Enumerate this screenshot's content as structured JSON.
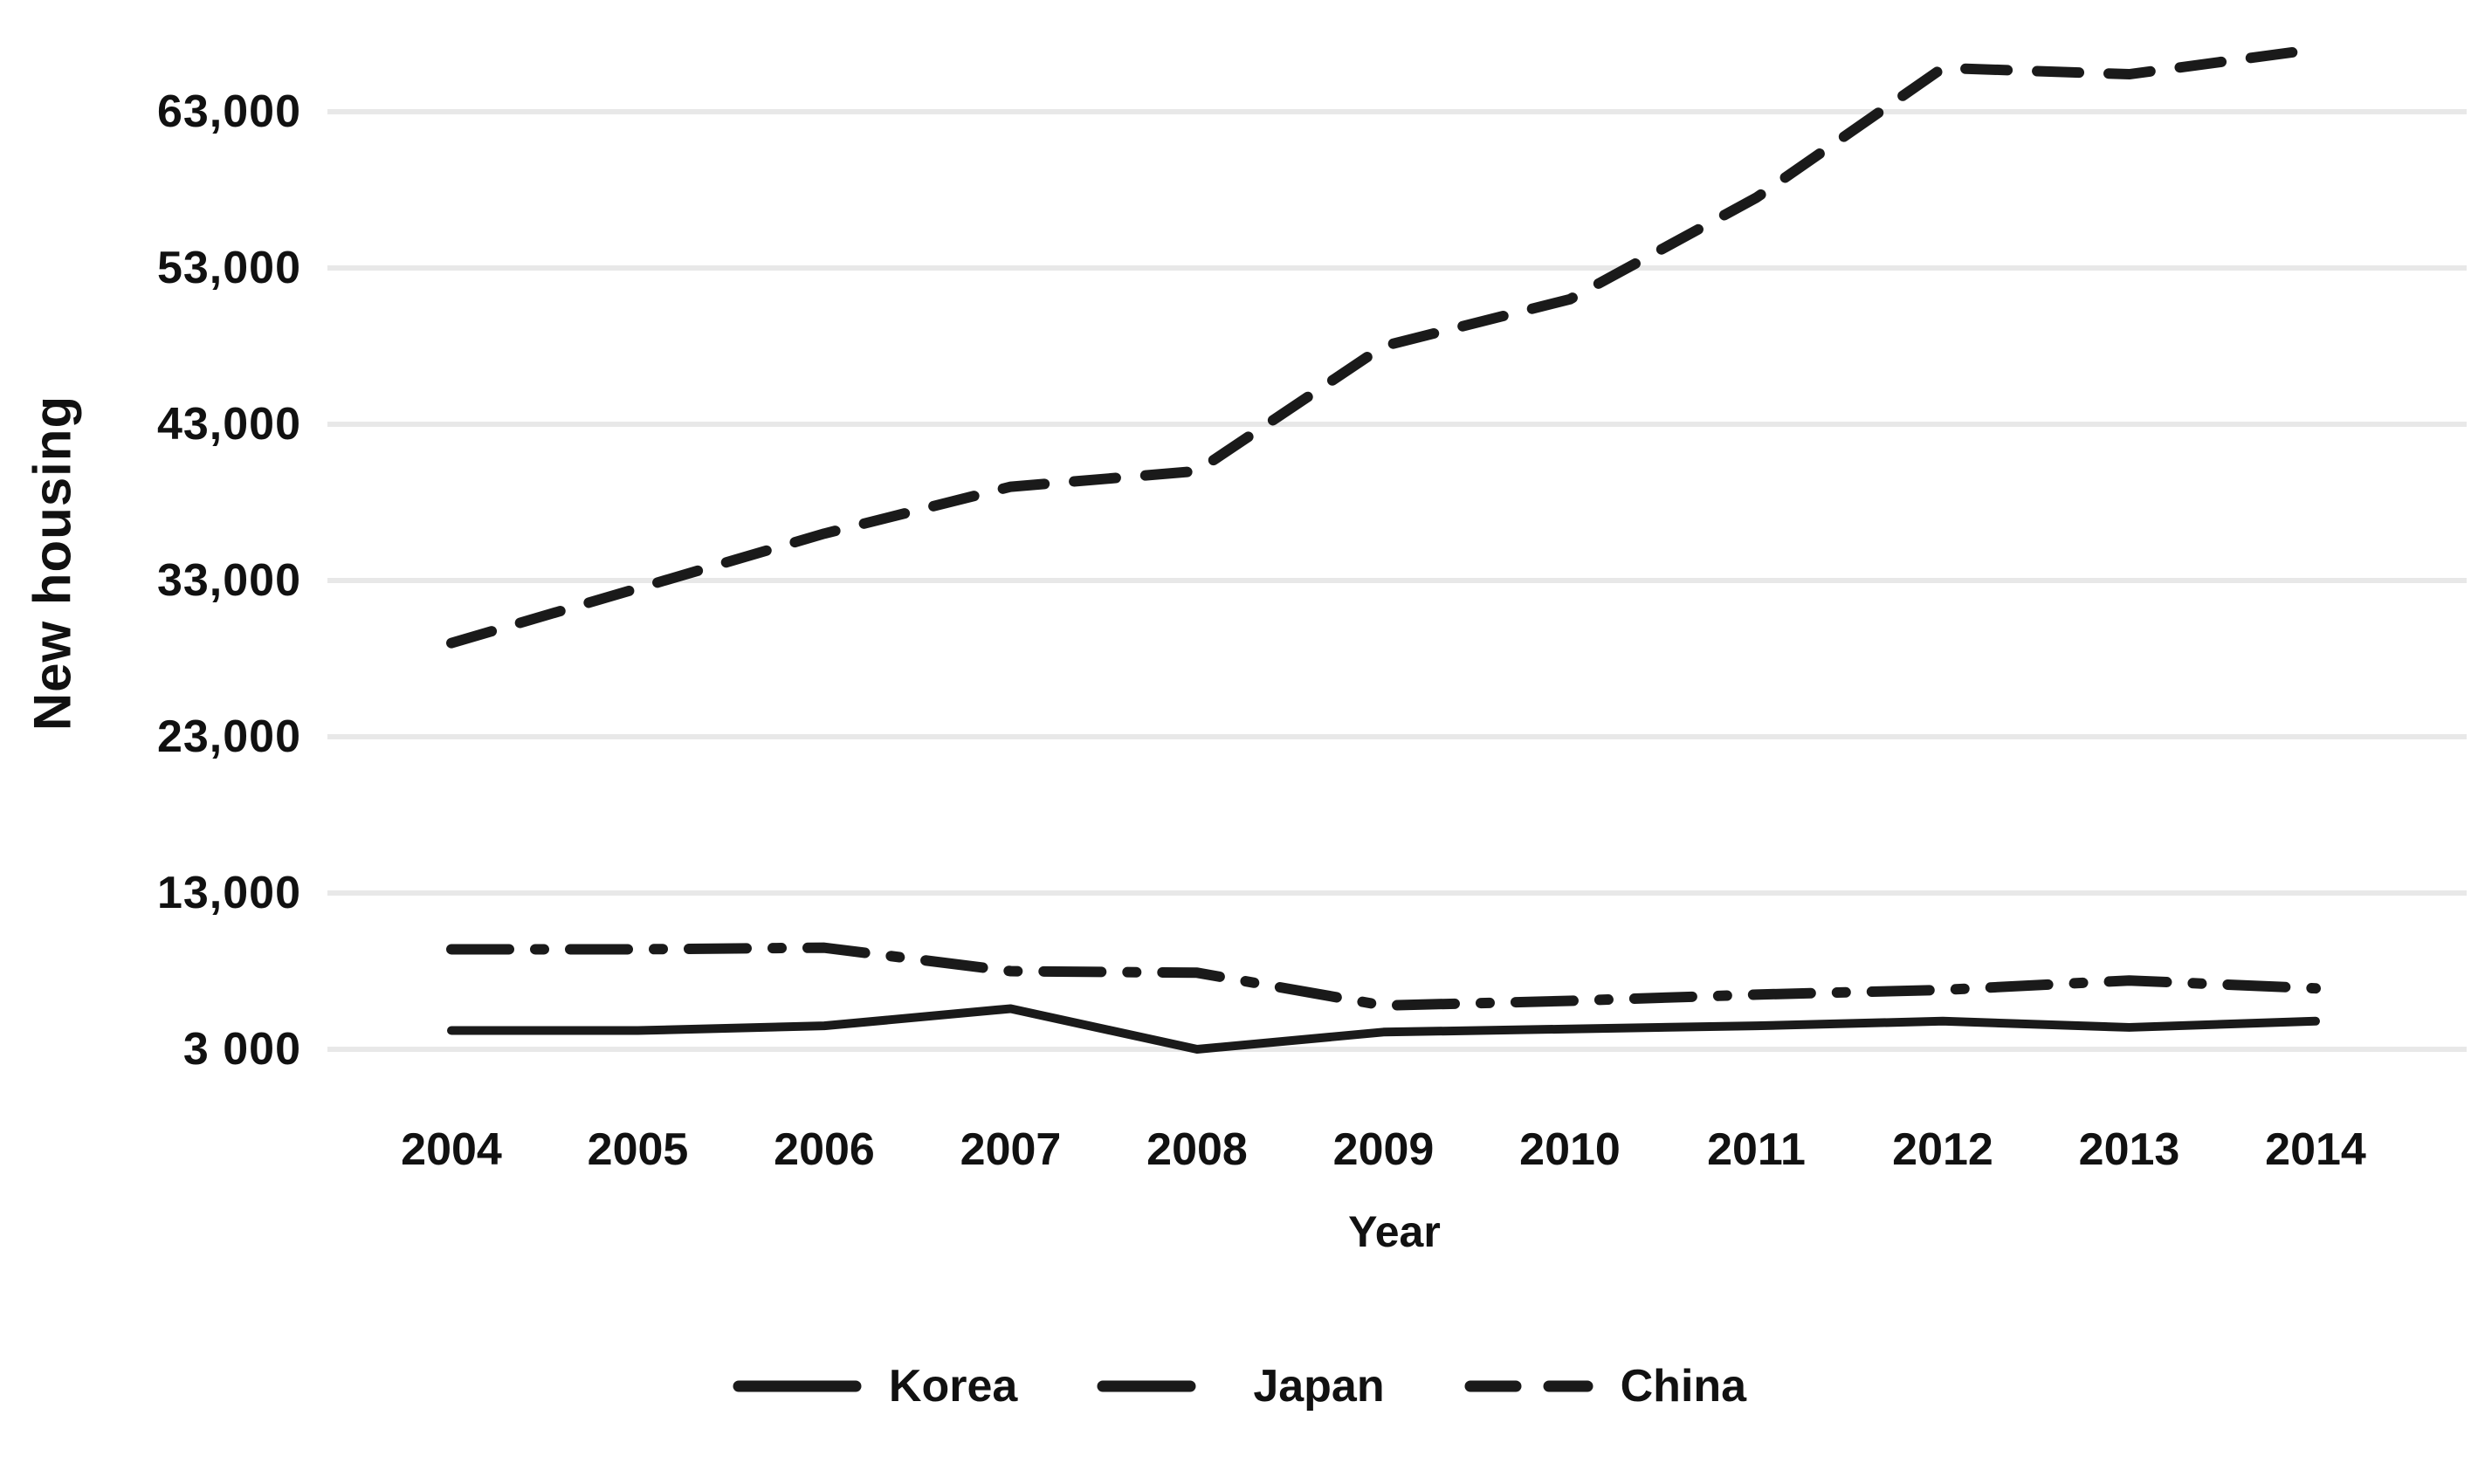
{
  "chart_data": {
    "type": "line",
    "title": "",
    "xlabel": "Year",
    "ylabel": "New housing",
    "x_categories": [
      "2004",
      "2005",
      "2006",
      "2007",
      "2008",
      "2009",
      "2010",
      "2011",
      "2012",
      "2013",
      "2014"
    ],
    "y_tick_values": [
      3000,
      13000,
      23000,
      33000,
      43000,
      53000,
      63000
    ],
    "y_tick_labels": [
      "3 000",
      "13,000",
      "23,000",
      "33,000",
      "43,000",
      "53,000",
      "63,000"
    ],
    "ylim": [
      3000,
      68000
    ],
    "grid": "horizontal-light-gray",
    "legend_position": "bottom-center",
    "colors": {
      "line": "#1a1a1a",
      "gridline": "#e8e8e8",
      "text": "#111111",
      "background": "#ffffff"
    },
    "series": [
      {
        "name": "Korea",
        "line_style": "solid",
        "color": "#1a1a1a",
        "values": [
          4200,
          4200,
          4500,
          5600,
          3000,
          4100,
          4300,
          4500,
          4800,
          4400,
          4800
        ]
      },
      {
        "name": "Japan",
        "line_style": "dash-dot",
        "color": "#1a1a1a",
        "values": [
          9400,
          9400,
          9500,
          8000,
          7900,
          5800,
          6100,
          6500,
          6800,
          7400,
          6900
        ]
      },
      {
        "name": "China",
        "line_style": "dashed",
        "color": "#1a1a1a",
        "values": [
          29000,
          32500,
          36000,
          39000,
          40000,
          48000,
          51000,
          57500,
          65800,
          65400,
          67000
        ]
      }
    ]
  }
}
